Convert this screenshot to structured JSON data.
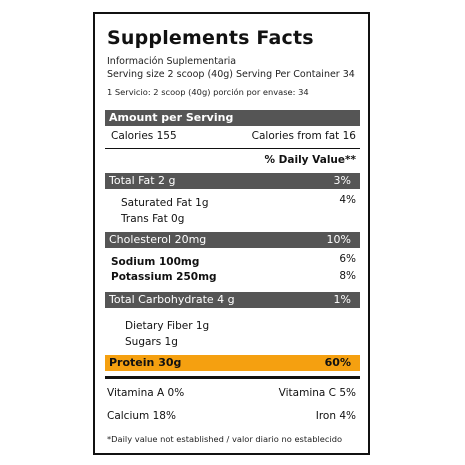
{
  "title": "Supplements Facts",
  "subtitle": "Información Suplementaria",
  "serving_line": "Serving size 2 scoop (40g) Serving Per Container 34",
  "serving_line_es": "1 Servicio: 2 scoop (40g) porción por envase: 34",
  "amount_header": "Amount per Serving",
  "calories": {
    "label": "Calories 155",
    "from_fat": "Calories from fat 16"
  },
  "daily_value_header": "% Daily Value**",
  "rows": {
    "total_fat": {
      "label": "Total Fat 2 g",
      "dv": "3%"
    },
    "saturated_fat": {
      "label": "Saturated Fat 1g",
      "dv": "4%"
    },
    "trans_fat": {
      "label": "Trans Fat 0g"
    },
    "cholesterol": {
      "label": "Cholesterol  20mg",
      "dv": "10%"
    },
    "sodium": {
      "label": "Sodium  100mg",
      "dv": "6%"
    },
    "potassium": {
      "label": "Potassium  250mg",
      "dv": "8%"
    },
    "total_carb": {
      "label": "Total Carbohydrate 4 g",
      "dv": "1%"
    },
    "fiber": {
      "label": "Dietary Fiber 1g"
    },
    "sugars": {
      "label": "Sugars 1g"
    },
    "protein": {
      "label": "Protein 30g",
      "dv": "60%"
    }
  },
  "vitamins": {
    "vitamin_a": "Vitamina A 0%",
    "vitamin_c": "Vitamina C 5%",
    "calcium": "Calcium 18%",
    "iron": "Iron 4%"
  },
  "footnote": "*Daily value not established / valor diario no establecido",
  "colors": {
    "bar_gray": "#555555",
    "protein_orange": "#f5a010",
    "border": "#111111"
  }
}
